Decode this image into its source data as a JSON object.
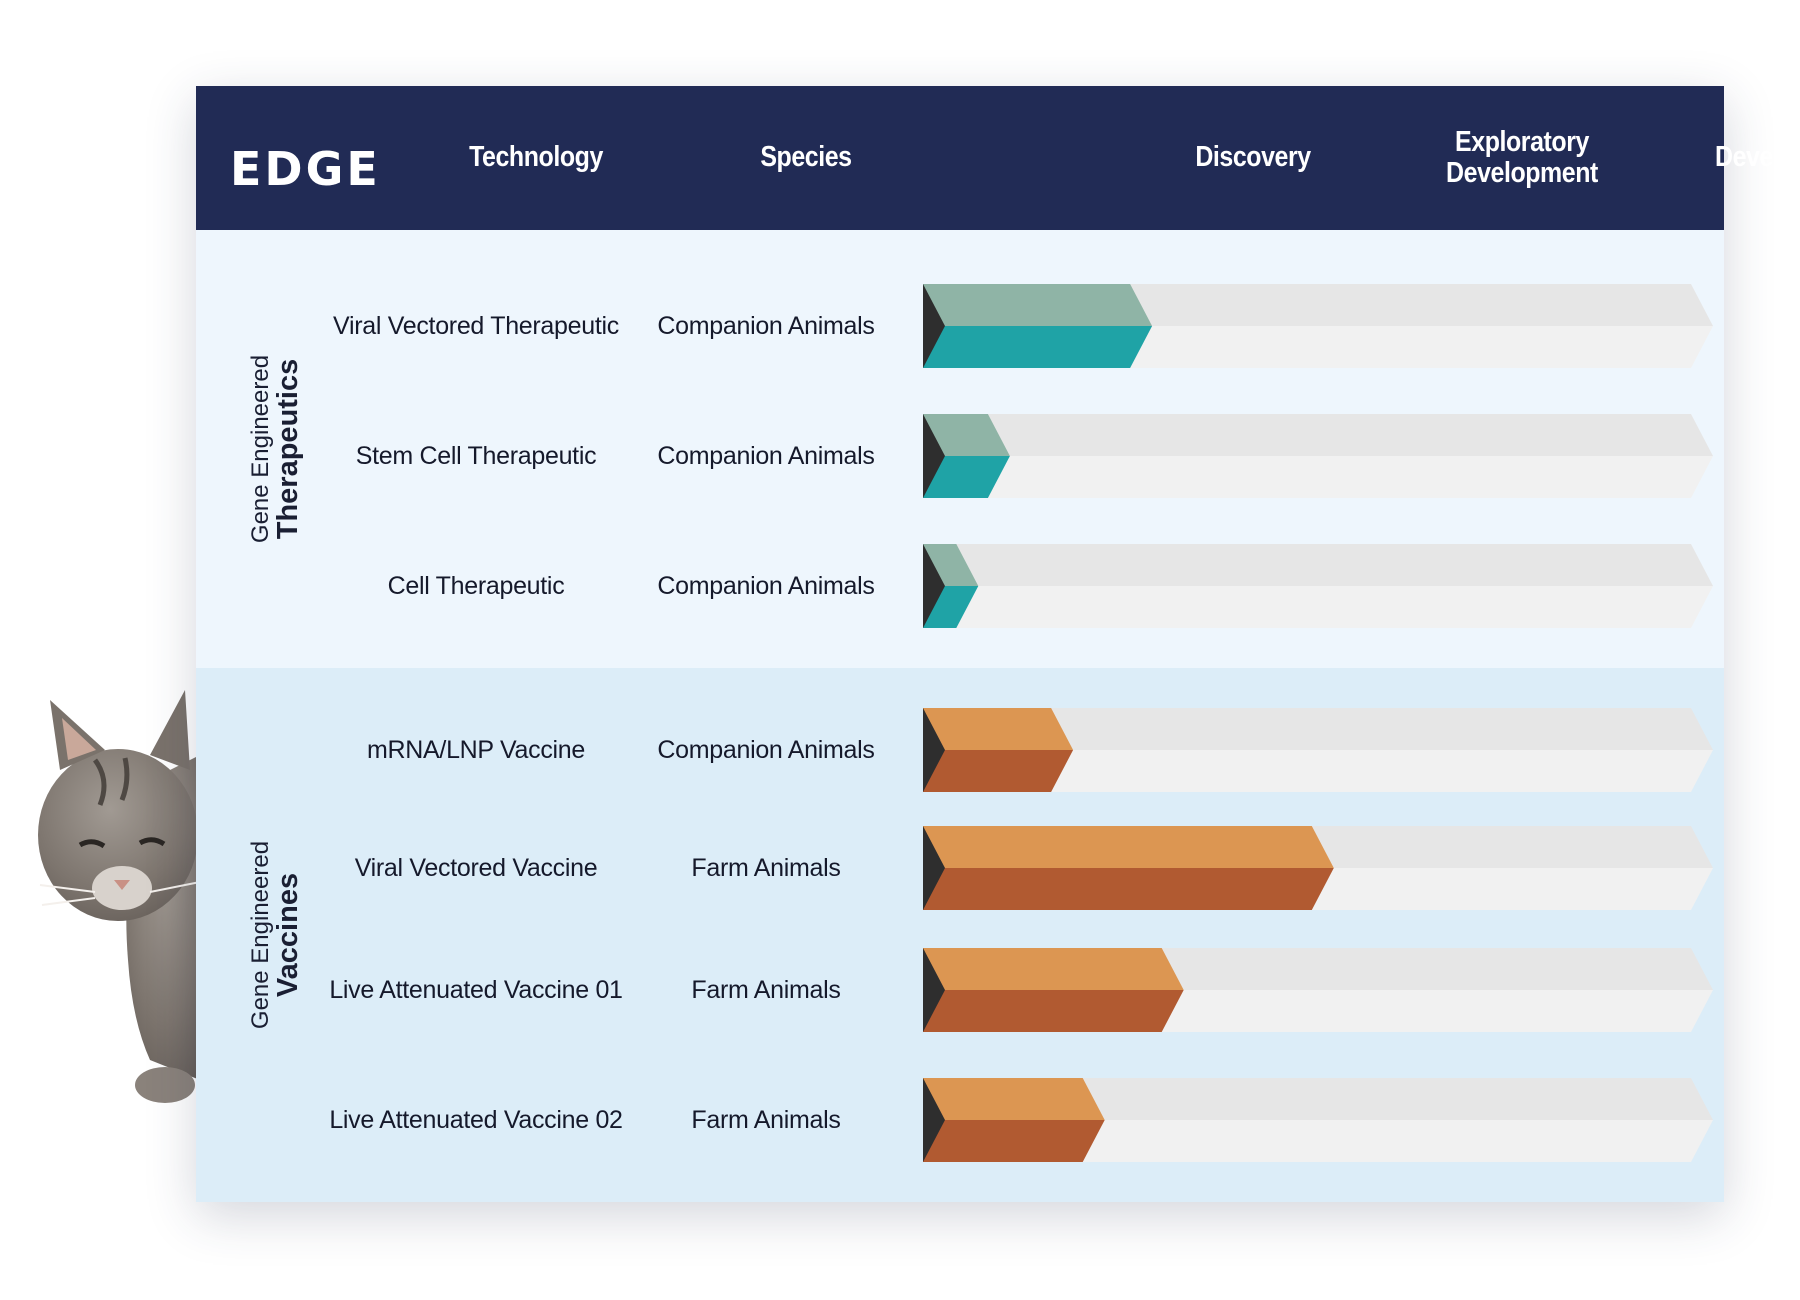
{
  "logo": "EDGE",
  "header": {
    "technology": "Technology",
    "species": "Species",
    "discovery": "Discovery",
    "exploratory_line1": "Exploratory",
    "exploratory_line2": "Development",
    "development": "Development"
  },
  "sections": [
    {
      "label_line1": "Gene Engineered",
      "label_line2": "Therapeutics"
    },
    {
      "label_line1": "Gene Engineered",
      "label_line2": "Vaccines"
    }
  ],
  "colors": {
    "header_bg": "#212b55",
    "teal_top": "#8fb4a6",
    "teal_bottom": "#1fa3a6",
    "orange_top": "#dc9652",
    "orange_bottom": "#b15a31",
    "track_top": "#e6e6e6",
    "track_bottom": "#f1f1f1",
    "cap": "#2e2e2e"
  },
  "chart_data": {
    "type": "bar",
    "stages": [
      "Discovery",
      "Exploratory Development",
      "Development"
    ],
    "rows": [
      {
        "technology": "Viral Vectored Therapeutic",
        "species": "Companion Animals",
        "group": "Therapeutics",
        "progress": 0.29
      },
      {
        "technology": "Stem Cell Therapeutic",
        "species": "Companion Animals",
        "group": "Therapeutics",
        "progress": 0.11
      },
      {
        "technology": "Cell Therapeutic",
        "species": "Companion Animals",
        "group": "Therapeutics",
        "progress": 0.07
      },
      {
        "technology": "mRNA/LNP Vaccine",
        "species": "Companion Animals",
        "group": "Vaccines",
        "progress": 0.19
      },
      {
        "technology": "Viral Vectored Vaccine",
        "species": "Farm Animals",
        "group": "Vaccines",
        "progress": 0.52
      },
      {
        "technology": "Live Attenuated Vaccine 01",
        "species": "Farm Animals",
        "group": "Vaccines",
        "progress": 0.33
      },
      {
        "technology": "Live Attenuated Vaccine 02",
        "species": "Farm Animals",
        "group": "Vaccines",
        "progress": 0.23
      }
    ]
  }
}
